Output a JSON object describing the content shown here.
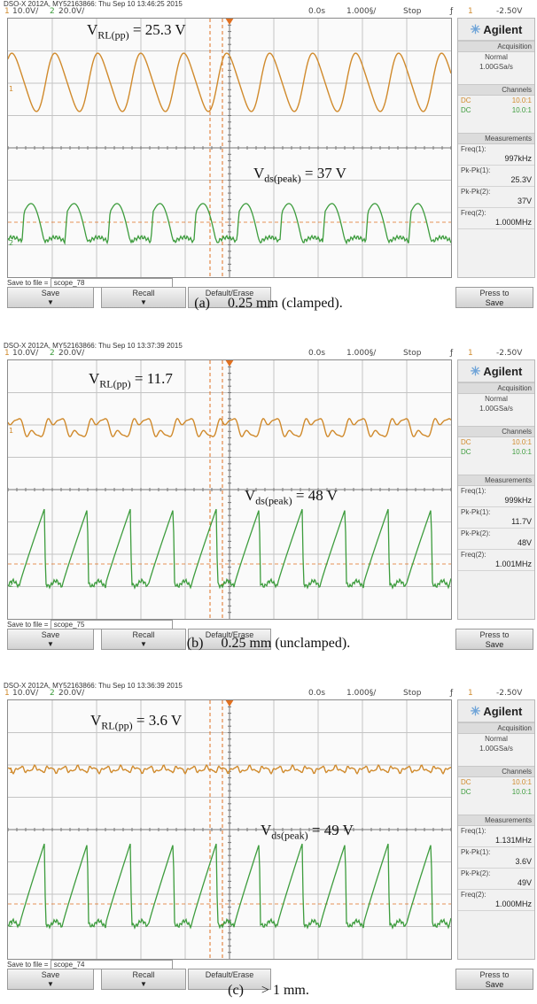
{
  "panels": [
    {
      "header": "DSO-X 2012A, MY52163866: Thu Sep 10 13:46:25 2015",
      "ch1_num": "1",
      "ch1_scale": "10.0V/",
      "ch2_num": "2",
      "ch2_scale": "20.0V/",
      "time_offset": "0.0s",
      "time_scale": "1.000§/",
      "run_state": "Stop",
      "trigger_ch": "1",
      "trigger_level": "-2.50V",
      "brand": "Agilent",
      "acq_title": "Acquisition",
      "acq_mode": "Normal",
      "acq_rate": "1.00GSa/s",
      "channels_title": "Channels",
      "chan1_coupling": "DC",
      "chan1_probe": "10.0:1",
      "chan2_coupling": "DC",
      "chan2_probe": "10.0:1",
      "meas_title": "Measurements",
      "m1_label": "Freq(1):",
      "m1_value": "997kHz",
      "m2_label": "Pk-Pk(1):",
      "m2_value": "25.3V",
      "m3_label": "Pk-Pk(2):",
      "m3_value": "37V",
      "m4_label": "Freq(2):",
      "m4_value": "1.000MHz",
      "save_label": "Save to file =",
      "save_file": "scope_78",
      "btn_save": "Save",
      "btn_recall": "Recall",
      "btn_default": "Default/Erase",
      "btn_press1": "Press to",
      "btn_press2": "Save",
      "ann_vrl_main": "V",
      "ann_vrl_sub": "RL(pp)",
      "ann_vrl_val": " = 25.3 V",
      "ann_vds_main": "V",
      "ann_vds_sub": "ds(peak)",
      "ann_vds_val": " = 37 V",
      "caption": "(a)  0.25 mm (clamped).",
      "wave": "clamped"
    },
    {
      "header": "DSO-X 2012A, MY52163866: Thu Sep 10 13:37:39 2015",
      "ch1_num": "1",
      "ch1_scale": "10.0V/",
      "ch2_num": "2",
      "ch2_scale": "20.0V/",
      "time_offset": "0.0s",
      "time_scale": "1.000§/",
      "run_state": "Stop",
      "trigger_ch": "1",
      "trigger_level": "-2.50V",
      "brand": "Agilent",
      "acq_title": "Acquisition",
      "acq_mode": "Normal",
      "acq_rate": "1.00GSa/s",
      "channels_title": "Channels",
      "chan1_coupling": "DC",
      "chan1_probe": "10.0:1",
      "chan2_coupling": "DC",
      "chan2_probe": "10.0:1",
      "meas_title": "Measurements",
      "m1_label": "Freq(1):",
      "m1_value": "999kHz",
      "m2_label": "Pk-Pk(1):",
      "m2_value": "11.7V",
      "m3_label": "Pk-Pk(2):",
      "m3_value": "48V",
      "m4_label": "Freq(2):",
      "m4_value": "1.001MHz",
      "save_label": "Save to file =",
      "save_file": "scope_75",
      "btn_save": "Save",
      "btn_recall": "Recall",
      "btn_default": "Default/Erase",
      "btn_press1": "Press to",
      "btn_press2": "Save",
      "ann_vrl_main": "V",
      "ann_vrl_sub": "RL(pp)",
      "ann_vrl_val": " = 11.7",
      "ann_vds_main": "V",
      "ann_vds_sub": "ds(peak)",
      "ann_vds_val": " = 48 V",
      "caption": "(b)  0.25 mm (unclamped).",
      "wave": "unclamped"
    },
    {
      "header": "DSO-X 2012A, MY52163866: Thu Sep 10 13:36:39 2015",
      "ch1_num": "1",
      "ch1_scale": "10.0V/",
      "ch2_num": "2",
      "ch2_scale": "20.0V/",
      "time_offset": "0.0s",
      "time_scale": "1.000§/",
      "run_state": "Stop",
      "trigger_ch": "1",
      "trigger_level": "-2.50V",
      "brand": "Agilent",
      "acq_title": "Acquisition",
      "acq_mode": "Normal",
      "acq_rate": "1.00GSa/s",
      "channels_title": "Channels",
      "chan1_coupling": "DC",
      "chan1_probe": "10.0:1",
      "chan2_coupling": "DC",
      "chan2_probe": "10.0:1",
      "meas_title": "Measurements",
      "m1_label": "Freq(1):",
      "m1_value": "1.131MHz",
      "m2_label": "Pk-Pk(1):",
      "m2_value": "3.6V",
      "m3_label": "Pk-Pk(2):",
      "m3_value": "49V",
      "m4_label": "Freq(2):",
      "m4_value": "1.000MHz",
      "save_label": "Save to file =",
      "save_file": "scope_74",
      "btn_save": "Save",
      "btn_recall": "Recall",
      "btn_default": "Default/Erase",
      "btn_press1": "Press to",
      "btn_press2": "Save",
      "ann_vrl_main": "V",
      "ann_vrl_sub": "RL(pp)",
      "ann_vrl_val": " = 3.6 V",
      "ann_vds_main": "V",
      "ann_vds_sub": "ds(peak)",
      "ann_vds_val": " = 49 V",
      "caption": "(c)  > 1 mm.",
      "wave": "far"
    }
  ],
  "colors": {
    "ch1": "#d08a2c",
    "ch2": "#3d9c3d",
    "grid": "#c4c4c4",
    "cursor": "#e07020"
  },
  "icons": {
    "brand": "agilent-star-icon",
    "softkey": "down-arrow-icon"
  }
}
